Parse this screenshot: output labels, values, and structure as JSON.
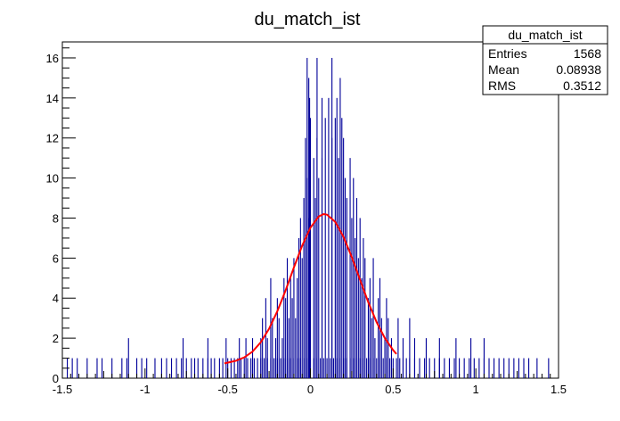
{
  "chart_data": {
    "type": "bar",
    "title": "du_match_ist",
    "xlabel": "",
    "ylabel": "",
    "xlim": [
      -1.5,
      1.5
    ],
    "ylim": [
      0,
      16.8
    ],
    "x_ticks": [
      "-1.5",
      "-1",
      "-0.5",
      "0",
      "0.5",
      "1",
      "1.5"
    ],
    "y_ticks": [
      "0",
      "2",
      "4",
      "6",
      "8",
      "10",
      "12",
      "14",
      "16"
    ],
    "bin_width": 0.006,
    "hist_color": "#000099",
    "fit_color": "#ff0000",
    "stats_box": {
      "title": "du_match_ist",
      "rows": [
        {
          "label": "Entries",
          "value": "1568"
        },
        {
          "label": "Mean",
          "value": "0.08938"
        },
        {
          "label": "RMS",
          "value": "0.3512"
        }
      ]
    },
    "bins": [
      [
        -1.47,
        1
      ],
      [
        -1.44,
        1
      ],
      [
        -1.41,
        1
      ],
      [
        -1.35,
        1
      ],
      [
        -1.29,
        1
      ],
      [
        -1.26,
        1
      ],
      [
        -1.2,
        1
      ],
      [
        -1.14,
        1
      ],
      [
        -1.11,
        1
      ],
      [
        -1.05,
        1
      ],
      [
        -1.02,
        1
      ],
      [
        -0.99,
        1
      ],
      [
        -0.94,
        1
      ],
      [
        -0.9,
        1
      ],
      [
        -0.87,
        1
      ],
      [
        -0.84,
        1
      ],
      [
        -0.81,
        1
      ],
      [
        -0.78,
        1
      ],
      [
        -0.75,
        1
      ],
      [
        -0.72,
        1
      ],
      [
        -0.7,
        1
      ],
      [
        -0.68,
        1
      ],
      [
        -0.65,
        1
      ],
      [
        -0.62,
        1
      ],
      [
        -0.6,
        1
      ],
      [
        -0.58,
        1
      ],
      [
        -0.55,
        1
      ],
      [
        -0.53,
        1
      ],
      [
        -0.5,
        1
      ],
      [
        -0.48,
        1
      ],
      [
        -0.46,
        1
      ],
      [
        -0.44,
        1
      ],
      [
        -0.42,
        1
      ],
      [
        -0.4,
        1
      ],
      [
        -0.38,
        1
      ],
      [
        -0.36,
        1
      ],
      [
        -0.34,
        1
      ],
      [
        -0.32,
        1
      ],
      [
        -0.3,
        1
      ],
      [
        -0.28,
        1
      ],
      [
        -0.26,
        1
      ],
      [
        -0.24,
        1
      ],
      [
        -0.22,
        1
      ],
      [
        -0.2,
        1
      ],
      [
        -0.18,
        1
      ],
      [
        -0.16,
        1
      ],
      [
        -0.14,
        1
      ],
      [
        -0.12,
        1
      ],
      [
        -0.1,
        1
      ],
      [
        -0.08,
        1
      ],
      [
        -0.06,
        1
      ],
      [
        -0.04,
        1
      ],
      [
        -0.02,
        1
      ],
      [
        0.0,
        1
      ],
      [
        0.02,
        1
      ],
      [
        0.04,
        1
      ],
      [
        0.06,
        1
      ],
      [
        0.08,
        1
      ],
      [
        0.1,
        1
      ],
      [
        0.12,
        1
      ],
      [
        0.14,
        1
      ],
      [
        0.16,
        1
      ],
      [
        0.18,
        1
      ],
      [
        0.2,
        1
      ],
      [
        0.22,
        1
      ],
      [
        0.24,
        1
      ],
      [
        0.26,
        1
      ],
      [
        0.28,
        1
      ],
      [
        0.3,
        1
      ],
      [
        0.32,
        1
      ],
      [
        0.34,
        1
      ],
      [
        0.36,
        1
      ],
      [
        0.38,
        1
      ],
      [
        0.4,
        1
      ],
      [
        0.42,
        1
      ],
      [
        0.44,
        1
      ],
      [
        0.46,
        1
      ],
      [
        0.48,
        1
      ],
      [
        0.5,
        1
      ],
      [
        0.52,
        1
      ],
      [
        0.54,
        1
      ],
      [
        0.56,
        1
      ],
      [
        0.58,
        1
      ],
      [
        0.6,
        1
      ],
      [
        0.63,
        1
      ],
      [
        0.66,
        1
      ],
      [
        0.69,
        1
      ],
      [
        0.72,
        1
      ],
      [
        0.75,
        1
      ],
      [
        0.78,
        1
      ],
      [
        0.81,
        1
      ],
      [
        0.84,
        1
      ],
      [
        0.87,
        1
      ],
      [
        0.9,
        1
      ],
      [
        0.93,
        1
      ],
      [
        0.96,
        1
      ],
      [
        0.99,
        1
      ],
      [
        1.02,
        1
      ],
      [
        1.05,
        1
      ],
      [
        1.08,
        1
      ],
      [
        1.11,
        1
      ],
      [
        1.14,
        1
      ],
      [
        1.17,
        1
      ],
      [
        1.2,
        1
      ],
      [
        1.23,
        1
      ],
      [
        1.26,
        1
      ],
      [
        1.29,
        1
      ],
      [
        1.32,
        1
      ],
      [
        1.37,
        1
      ],
      [
        1.44,
        1
      ],
      [
        -1.1,
        2
      ],
      [
        -0.77,
        2
      ],
      [
        -0.62,
        2
      ],
      [
        -0.51,
        2
      ],
      [
        -0.43,
        2
      ],
      [
        -0.39,
        2
      ],
      [
        -0.35,
        2
      ],
      [
        -0.3,
        2
      ],
      [
        -0.26,
        2
      ],
      [
        -0.21,
        2
      ],
      [
        -0.17,
        2
      ],
      [
        0.39,
        2
      ],
      [
        0.45,
        2
      ],
      [
        0.49,
        2
      ],
      [
        0.56,
        2
      ],
      [
        0.63,
        2
      ],
      [
        0.7,
        2
      ],
      [
        0.78,
        2
      ],
      [
        0.88,
        2
      ],
      [
        0.97,
        2
      ],
      [
        1.05,
        2
      ],
      [
        -0.29,
        3
      ],
      [
        -0.23,
        3
      ],
      [
        -0.19,
        3
      ],
      [
        -0.13,
        3
      ],
      [
        -0.09,
        3
      ],
      [
        0.37,
        3
      ],
      [
        0.43,
        3
      ],
      [
        0.47,
        3
      ],
      [
        0.53,
        3
      ],
      [
        0.6,
        3
      ],
      [
        -0.27,
        4
      ],
      [
        -0.2,
        4
      ],
      [
        -0.15,
        4
      ],
      [
        -0.11,
        4
      ],
      [
        0.35,
        4
      ],
      [
        0.41,
        4
      ],
      [
        0.46,
        4
      ],
      [
        -0.24,
        5
      ],
      [
        -0.16,
        5
      ],
      [
        -0.12,
        5
      ],
      [
        -0.08,
        5
      ],
      [
        0.31,
        5
      ],
      [
        0.36,
        5
      ],
      [
        0.42,
        5
      ],
      [
        -0.14,
        6
      ],
      [
        -0.1,
        6
      ],
      [
        -0.05,
        6
      ],
      [
        0.29,
        6
      ],
      [
        0.33,
        6
      ],
      [
        0.38,
        6
      ],
      [
        -0.07,
        7
      ],
      [
        -0.03,
        7
      ],
      [
        0.27,
        7
      ],
      [
        0.32,
        7
      ],
      [
        -0.06,
        8
      ],
      [
        -0.01,
        8
      ],
      [
        0.25,
        8
      ],
      [
        0.3,
        8
      ],
      [
        -0.04,
        9
      ],
      [
        0.03,
        9
      ],
      [
        0.22,
        9
      ],
      [
        0.28,
        9
      ],
      [
        -0.02,
        10
      ],
      [
        0.05,
        10
      ],
      [
        0.21,
        10
      ],
      [
        0.26,
        10
      ],
      [
        0.02,
        11
      ],
      [
        0.07,
        11
      ],
      [
        0.17,
        11
      ],
      [
        0.24,
        11
      ],
      [
        -0.03,
        12
      ],
      [
        0.04,
        12
      ],
      [
        0.13,
        12
      ],
      [
        0.2,
        12
      ],
      [
        0.0,
        13
      ],
      [
        0.09,
        13
      ],
      [
        0.15,
        13
      ],
      [
        0.19,
        13
      ],
      [
        -0.005,
        14
      ],
      [
        0.07,
        14
      ],
      [
        0.11,
        14
      ],
      [
        0.16,
        14
      ],
      [
        -0.01,
        15
      ],
      [
        0.18,
        15
      ],
      [
        -0.02,
        16
      ],
      [
        0.04,
        16
      ],
      [
        0.13,
        16
      ]
    ],
    "fit": {
      "name": "gaus",
      "x": [
        -0.52,
        -0.45,
        -0.4,
        -0.35,
        -0.3,
        -0.25,
        -0.2,
        -0.15,
        -0.1,
        -0.05,
        0.0,
        0.05,
        0.08,
        0.1,
        0.15,
        0.2,
        0.25,
        0.3,
        0.35,
        0.4,
        0.45,
        0.5,
        0.52
      ],
      "y": [
        0.74,
        0.87,
        1.04,
        1.33,
        1.8,
        2.47,
        3.35,
        4.39,
        5.53,
        6.62,
        7.52,
        8.08,
        8.2,
        8.17,
        7.81,
        7.06,
        6.05,
        4.91,
        3.79,
        2.8,
        2.0,
        1.4,
        1.21
      ]
    }
  }
}
